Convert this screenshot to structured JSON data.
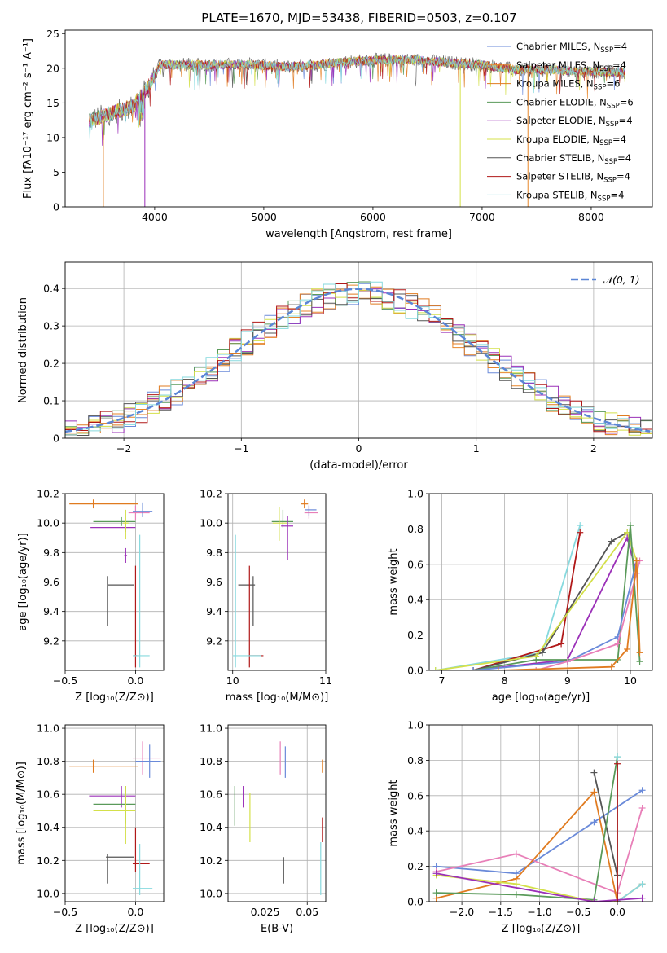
{
  "title": "PLATE=1670, MJD=53438, FIBERID=0503, z=0.107",
  "colors": {
    "Chabrier MILES": "#6a8ad9",
    "Salpeter MILES": "#e8862a",
    "Kroupa MILES": "#e07b20",
    "Chabrier ELODIE": "#5a9a5a",
    "Salpeter ELODIE": "#9b30b8",
    "Kroupa ELODIE": "#d4e04a",
    "Chabrier STELIB": "#555555",
    "Salpeter STELIB": "#b01818",
    "Kroupa STELIB": "#86d9de",
    "pink": "#e87fb8",
    "normal": "#5b86d6"
  },
  "chart_data": [
    {
      "id": "spectrum",
      "type": "line",
      "xlabel": "wavelength [Angstrom, rest frame]",
      "ylabel": "Flux [fλ10⁻¹⁷ erg cm⁻² s⁻¹ A⁻¹]",
      "xlim": [
        3180,
        8560
      ],
      "ylim": [
        0,
        25.5
      ],
      "xticks": [
        4000,
        5000,
        6000,
        7000,
        8000
      ],
      "yticks": [
        0,
        5,
        10,
        15,
        20,
        25
      ],
      "legend_position": "top-right",
      "legend": [
        {
          "label": "Chabrier MILES, N",
          "sub": "SSP",
          "tail": "=4",
          "color": "#6a8ad9"
        },
        {
          "label": "Salpeter MILES, N",
          "sub": "SSP",
          "tail": "=4",
          "color": "#e8862a"
        },
        {
          "label": "Kroupa MILES, N",
          "sub": "SSP",
          "tail": "=6",
          "color": "#e07b20"
        },
        {
          "label": "Chabrier ELODIE, N",
          "sub": "SSP",
          "tail": "=6",
          "color": "#5a9a5a"
        },
        {
          "label": "Salpeter ELODIE, N",
          "sub": "SSP",
          "tail": "=4",
          "color": "#9b30b8"
        },
        {
          "label": "Kroupa ELODIE, N",
          "sub": "SSP",
          "tail": "=4",
          "color": "#d4e04a"
        },
        {
          "label": "Chabrier STELIB, N",
          "sub": "SSP",
          "tail": "=4",
          "color": "#555555"
        },
        {
          "label": "Salpeter STELIB, N",
          "sub": "SSP",
          "tail": "=4",
          "color": "#b01818"
        },
        {
          "label": "Kroupa STELIB, N",
          "sub": "SSP",
          "tail": "=4",
          "color": "#86d9de"
        }
      ],
      "envelope": [
        [
          3400,
          12.5
        ],
        [
          3600,
          13.5
        ],
        [
          3800,
          14.5
        ],
        [
          3950,
          17.5
        ],
        [
          4050,
          20.5
        ],
        [
          4300,
          20.5
        ],
        [
          4600,
          20.5
        ],
        [
          4900,
          20.5
        ],
        [
          5200,
          20.2
        ],
        [
          5500,
          20.5
        ],
        [
          5800,
          21
        ],
        [
          6100,
          21.2
        ],
        [
          6400,
          21.2
        ],
        [
          6700,
          20.8
        ],
        [
          7000,
          20.5
        ],
        [
          7300,
          19.8
        ],
        [
          7600,
          19.8
        ],
        [
          8000,
          19.5
        ],
        [
          8300,
          19.5
        ]
      ],
      "dips": [
        [
          3530,
          0
        ],
        [
          3910,
          0
        ],
        [
          6800,
          0
        ],
        [
          7420,
          0
        ]
      ]
    },
    {
      "id": "residuals",
      "type": "step",
      "xlabel": "(data-model)/error",
      "ylabel": "Normed distribution",
      "xlim": [
        -2.5,
        2.5
      ],
      "ylim": [
        0,
        0.47
      ],
      "xticks": [
        -2,
        -1,
        0,
        1,
        2
      ],
      "yticks": [
        0.0,
        0.1,
        0.2,
        0.3,
        0.4
      ],
      "legend_position": "top-right",
      "legend_label": "𝒩(0, 1)",
      "gaussian": {
        "mu": 0,
        "sigma": 1
      }
    },
    {
      "id": "age-Z",
      "type": "errorbar",
      "xlabel": "Z [log₁₀(Z/Z⊙)]",
      "ylabel": "age  [log₁₀(age/yr)]",
      "xlim": [
        -0.5,
        0.2
      ],
      "ylim": [
        9.0,
        10.2
      ],
      "xticks": [
        -0.5,
        0.0
      ],
      "yticks": [
        9.2,
        9.4,
        9.6,
        9.8,
        10.0,
        10.2
      ],
      "points": [
        {
          "x": -0.3,
          "y": 10.13,
          "xl": -0.47,
          "xh": 0.02,
          "yl": 10.1,
          "yh": 10.16,
          "c": "#e07b20"
        },
        {
          "x": 0.0,
          "y": 10.07,
          "xl": -0.05,
          "xh": 0.1,
          "yl": 10.02,
          "yh": 10.12,
          "c": "#e87fb8"
        },
        {
          "x": 0.05,
          "y": 10.08,
          "xl": -0.02,
          "xh": 0.12,
          "yl": 10.04,
          "yh": 10.14,
          "c": "#6a8ad9"
        },
        {
          "x": -0.1,
          "y": 10.01,
          "xl": -0.3,
          "xh": 0.0,
          "yl": 9.98,
          "yh": 10.04,
          "c": "#5a9a5a"
        },
        {
          "x": -0.07,
          "y": 9.97,
          "xl": -0.32,
          "xh": 0.0,
          "yl": 9.94,
          "yh": 10.0,
          "c": "#9b30b8"
        },
        {
          "x": -0.07,
          "y": 10.0,
          "xl": -0.09,
          "xh": -0.05,
          "yl": 9.89,
          "yh": 10.09,
          "c": "#d4e04a"
        },
        {
          "x": -0.07,
          "y": 9.78,
          "xl": -0.08,
          "xh": -0.06,
          "yl": 9.73,
          "yh": 9.83,
          "c": "#9b30b8"
        },
        {
          "x": -0.2,
          "y": 9.58,
          "xl": -0.2,
          "xh": -0.01,
          "yl": 9.3,
          "yh": 9.64,
          "c": "#555555"
        },
        {
          "x": 0.0,
          "y": 9.1,
          "xl": -0.01,
          "xh": 0.01,
          "yl": 9.02,
          "yh": 9.71,
          "c": "#b01818"
        },
        {
          "x": 0.03,
          "y": 9.1,
          "xl": -0.02,
          "xh": 0.1,
          "yl": 9.02,
          "yh": 9.92,
          "c": "#86d9de"
        }
      ]
    },
    {
      "id": "age-mass",
      "type": "errorbar",
      "xlabel": "mass [log₁₀(M/M⊙)]",
      "ylabel": "",
      "xlim": [
        9.95,
        11.0
      ],
      "ylim": [
        9.0,
        10.2
      ],
      "xticks": [
        10,
        11
      ],
      "yticks": [
        9.2,
        9.4,
        9.6,
        9.8,
        10.0,
        10.2
      ],
      "points": [
        {
          "x": 10.77,
          "y": 10.13,
          "xl": 10.73,
          "xh": 10.81,
          "yl": 10.1,
          "yh": 10.16,
          "c": "#e07b20"
        },
        {
          "x": 10.82,
          "y": 10.07,
          "xl": 10.77,
          "xh": 10.92,
          "yl": 10.03,
          "yh": 10.12,
          "c": "#e87fb8"
        },
        {
          "x": 10.82,
          "y": 10.09,
          "xl": 10.78,
          "xh": 10.9,
          "yl": 10.05,
          "yh": 10.12,
          "c": "#6a8ad9"
        },
        {
          "x": 10.54,
          "y": 10.01,
          "xl": 10.42,
          "xh": 10.65,
          "yl": 9.97,
          "yh": 10.09,
          "c": "#5a9a5a"
        },
        {
          "x": 10.59,
          "y": 9.98,
          "xl": 10.52,
          "xh": 10.65,
          "yl": 9.75,
          "yh": 10.05,
          "c": "#9b30b8"
        },
        {
          "x": 10.5,
          "y": 10.0,
          "xl": 10.43,
          "xh": 10.58,
          "yl": 9.88,
          "yh": 10.11,
          "c": "#d4e04a"
        },
        {
          "x": 10.22,
          "y": 9.58,
          "xl": 10.06,
          "xh": 10.24,
          "yl": 9.3,
          "yh": 9.64,
          "c": "#555555"
        },
        {
          "x": 10.18,
          "y": 9.1,
          "xl": 10.17,
          "xh": 10.33,
          "yl": 9.02,
          "yh": 9.71,
          "c": "#b01818"
        },
        {
          "x": 10.03,
          "y": 9.1,
          "xl": 10.0,
          "xh": 10.3,
          "yl": 9.02,
          "yh": 9.92,
          "c": "#86d9de"
        }
      ]
    },
    {
      "id": "mw-age",
      "type": "line",
      "xlabel": "age  [log₁₀(age/yr)]",
      "ylabel": "mass weight",
      "xlim": [
        6.8,
        10.35
      ],
      "ylim": [
        0,
        1.0
      ],
      "xticks": [
        7,
        8,
        9,
        10
      ],
      "yticks": [
        0.0,
        0.2,
        0.4,
        0.6,
        0.8,
        1.0
      ],
      "series": [
        {
          "c": "#86d9de",
          "pts": [
            [
              6.9,
              0.0
            ],
            [
              8.6,
              0.1
            ],
            [
              9.2,
              0.82
            ]
          ]
        },
        {
          "c": "#b01818",
          "pts": [
            [
              7.5,
              0.0
            ],
            [
              8.9,
              0.15
            ],
            [
              9.2,
              0.78
            ]
          ]
        },
        {
          "c": "#555555",
          "pts": [
            [
              7.5,
              0.0
            ],
            [
              8.6,
              0.1
            ],
            [
              9.7,
              0.73
            ],
            [
              9.95,
              0.78
            ]
          ]
        },
        {
          "c": "#d4e04a",
          "pts": [
            [
              6.9,
              0.0
            ],
            [
              8.5,
              0.08
            ],
            [
              9.95,
              0.78
            ],
            [
              10.1,
              0.62
            ]
          ]
        },
        {
          "c": "#9b30b8",
          "pts": [
            [
              7.5,
              0.0
            ],
            [
              9.0,
              0.06
            ],
            [
              9.95,
              0.75
            ],
            [
              10.1,
              0.55
            ]
          ]
        },
        {
          "c": "#5a9a5a",
          "pts": [
            [
              7.5,
              0.0
            ],
            [
              8.5,
              0.06
            ],
            [
              9.8,
              0.06
            ],
            [
              10.0,
              0.82
            ],
            [
              10.15,
              0.05
            ]
          ]
        },
        {
          "c": "#6a8ad9",
          "pts": [
            [
              7.5,
              0.0
            ],
            [
              9.0,
              0.05
            ],
            [
              9.8,
              0.19
            ],
            [
              10.1,
              0.62
            ]
          ]
        },
        {
          "c": "#e87fb8",
          "pts": [
            [
              8.5,
              0.0
            ],
            [
              9.0,
              0.05
            ],
            [
              9.8,
              0.15
            ],
            [
              10.15,
              0.62
            ]
          ]
        },
        {
          "c": "#e07b20",
          "pts": [
            [
              7.9,
              0.0
            ],
            [
              9.7,
              0.02
            ],
            [
              9.95,
              0.12
            ],
            [
              10.1,
              0.62
            ],
            [
              10.15,
              0.1
            ]
          ]
        }
      ]
    },
    {
      "id": "mass-Z",
      "type": "errorbar",
      "xlabel": "Z [log₁₀(Z/Z⊙)]",
      "ylabel": "mass [log₁₀(M/M⊙)]",
      "xlim": [
        -0.5,
        0.2
      ],
      "ylim": [
        9.95,
        11.02
      ],
      "xticks": [
        -0.5,
        0.0
      ],
      "yticks": [
        10.0,
        10.2,
        10.4,
        10.6,
        10.8,
        11.0
      ],
      "points": [
        {
          "x": -0.3,
          "y": 10.77,
          "xl": -0.47,
          "xh": 0.02,
          "yl": 10.73,
          "yh": 10.81,
          "c": "#e07b20"
        },
        {
          "x": 0.05,
          "y": 10.82,
          "xl": -0.02,
          "xh": 0.18,
          "yl": 10.72,
          "yh": 10.92,
          "c": "#e87fb8"
        },
        {
          "x": 0.1,
          "y": 10.8,
          "xl": 0.0,
          "xh": 0.18,
          "yl": 10.7,
          "yh": 10.9,
          "c": "#6a8ad9"
        },
        {
          "x": -0.1,
          "y": 10.59,
          "xl": -0.33,
          "xh": 0.0,
          "yl": 10.52,
          "yh": 10.65,
          "c": "#9b30b8"
        },
        {
          "x": -0.07,
          "y": 10.54,
          "xl": -0.3,
          "xh": 0.0,
          "yl": 10.42,
          "yh": 10.65,
          "c": "#5a9a5a"
        },
        {
          "x": -0.07,
          "y": 10.5,
          "xl": -0.3,
          "xh": 0.0,
          "yl": 10.3,
          "yh": 10.65,
          "c": "#d4e04a"
        },
        {
          "x": -0.2,
          "y": 10.22,
          "xl": -0.21,
          "xh": -0.01,
          "yl": 10.06,
          "yh": 10.24,
          "c": "#555555"
        },
        {
          "x": 0.0,
          "y": 10.18,
          "xl": -0.02,
          "xh": 0.1,
          "yl": 10.13,
          "yh": 10.4,
          "c": "#b01818"
        },
        {
          "x": 0.03,
          "y": 10.03,
          "xl": -0.02,
          "xh": 0.12,
          "yl": 9.99,
          "yh": 10.3,
          "c": "#86d9de"
        }
      ]
    },
    {
      "id": "mass-EBV",
      "type": "errorbar",
      "xlabel": "E(B-V)",
      "ylabel": "",
      "xlim": [
        0.003,
        0.061
      ],
      "ylim": [
        9.95,
        11.02
      ],
      "xticks": [
        0.025,
        0.05
      ],
      "yticks": [
        10.0,
        10.2,
        10.4,
        10.6,
        10.8,
        11.0
      ],
      "points": [
        {
          "x": 0.059,
          "y": 10.77,
          "xl": 0.059,
          "xh": 0.059,
          "yl": 10.73,
          "yh": 10.81,
          "c": "#e07b20"
        },
        {
          "x": 0.034,
          "y": 10.82,
          "xl": 0.034,
          "xh": 0.034,
          "yl": 10.72,
          "yh": 10.92,
          "c": "#e87fb8"
        },
        {
          "x": 0.037,
          "y": 10.8,
          "xl": 0.037,
          "xh": 0.037,
          "yl": 10.7,
          "yh": 10.89,
          "c": "#6a8ad9"
        },
        {
          "x": 0.007,
          "y": 10.54,
          "xl": 0.007,
          "xh": 0.007,
          "yl": 10.41,
          "yh": 10.65,
          "c": "#5a9a5a"
        },
        {
          "x": 0.012,
          "y": 10.59,
          "xl": 0.012,
          "xh": 0.012,
          "yl": 10.52,
          "yh": 10.65,
          "c": "#9b30b8"
        },
        {
          "x": 0.016,
          "y": 10.5,
          "xl": 0.016,
          "xh": 0.016,
          "yl": 10.31,
          "yh": 10.61,
          "c": "#d4e04a"
        },
        {
          "x": 0.036,
          "y": 10.22,
          "xl": 0.036,
          "xh": 0.036,
          "yl": 10.06,
          "yh": 10.22,
          "c": "#555555"
        },
        {
          "x": 0.059,
          "y": 10.18,
          "xl": 0.059,
          "xh": 0.059,
          "yl": 10.31,
          "yh": 10.46,
          "c": "#b01818"
        },
        {
          "x": 0.058,
          "y": 10.03,
          "xl": 0.058,
          "xh": 0.058,
          "yl": 9.99,
          "yh": 10.31,
          "c": "#86d9de"
        }
      ]
    },
    {
      "id": "mw-Z",
      "type": "line",
      "xlabel": "Z [log₁₀(Z/Z⊙)]",
      "ylabel": "mass weight",
      "xlim": [
        -2.42,
        0.45
      ],
      "ylim": [
        0,
        1.0
      ],
      "xticks": [
        -2.0,
        -1.5,
        -1.0,
        -0.5,
        0.0
      ],
      "yticks": [
        0.0,
        0.2,
        0.4,
        0.6,
        0.8,
        1.0
      ],
      "series": [
        {
          "c": "#6a8ad9",
          "pts": [
            [
              -2.33,
              0.2
            ],
            [
              -1.3,
              0.16
            ],
            [
              -0.3,
              0.45
            ],
            [
              0.32,
              0.63
            ]
          ]
        },
        {
          "c": "#e87fb8",
          "pts": [
            [
              -2.33,
              0.17
            ],
            [
              -1.3,
              0.27
            ],
            [
              0.0,
              0.05
            ],
            [
              0.32,
              0.53
            ]
          ]
        },
        {
          "c": "#e07b20",
          "pts": [
            [
              -2.33,
              0.02
            ],
            [
              -1.3,
              0.13
            ],
            [
              -0.3,
              0.62
            ],
            [
              0.0,
              0.0
            ],
            [
              0.32,
              0.1
            ]
          ]
        },
        {
          "c": "#555555",
          "pts": [
            [
              -0.3,
              0.73
            ],
            [
              0.0,
              0.15
            ]
          ]
        },
        {
          "c": "#5a9a5a",
          "pts": [
            [
              -2.33,
              0.05
            ],
            [
              -1.3,
              0.04
            ],
            [
              -0.3,
              0.01
            ],
            [
              0.0,
              0.82
            ]
          ]
        },
        {
          "c": "#d4e04a",
          "pts": [
            [
              -2.33,
              0.15
            ],
            [
              -1.3,
              0.1
            ],
            [
              -0.3,
              0.0
            ],
            [
              0.0,
              0.0
            ]
          ]
        },
        {
          "c": "#86d9de",
          "pts": [
            [
              0.0,
              0.82
            ],
            [
              0.0,
              0.0
            ],
            [
              0.32,
              0.1
            ]
          ]
        },
        {
          "c": "#9b30b8",
          "pts": [
            [
              -2.33,
              0.16
            ],
            [
              -0.3,
              0.0
            ],
            [
              0.32,
              0.02
            ]
          ]
        },
        {
          "c": "#b01818",
          "pts": [
            [
              0.0,
              0.78
            ],
            [
              0.0,
              0.0
            ]
          ]
        }
      ]
    }
  ]
}
